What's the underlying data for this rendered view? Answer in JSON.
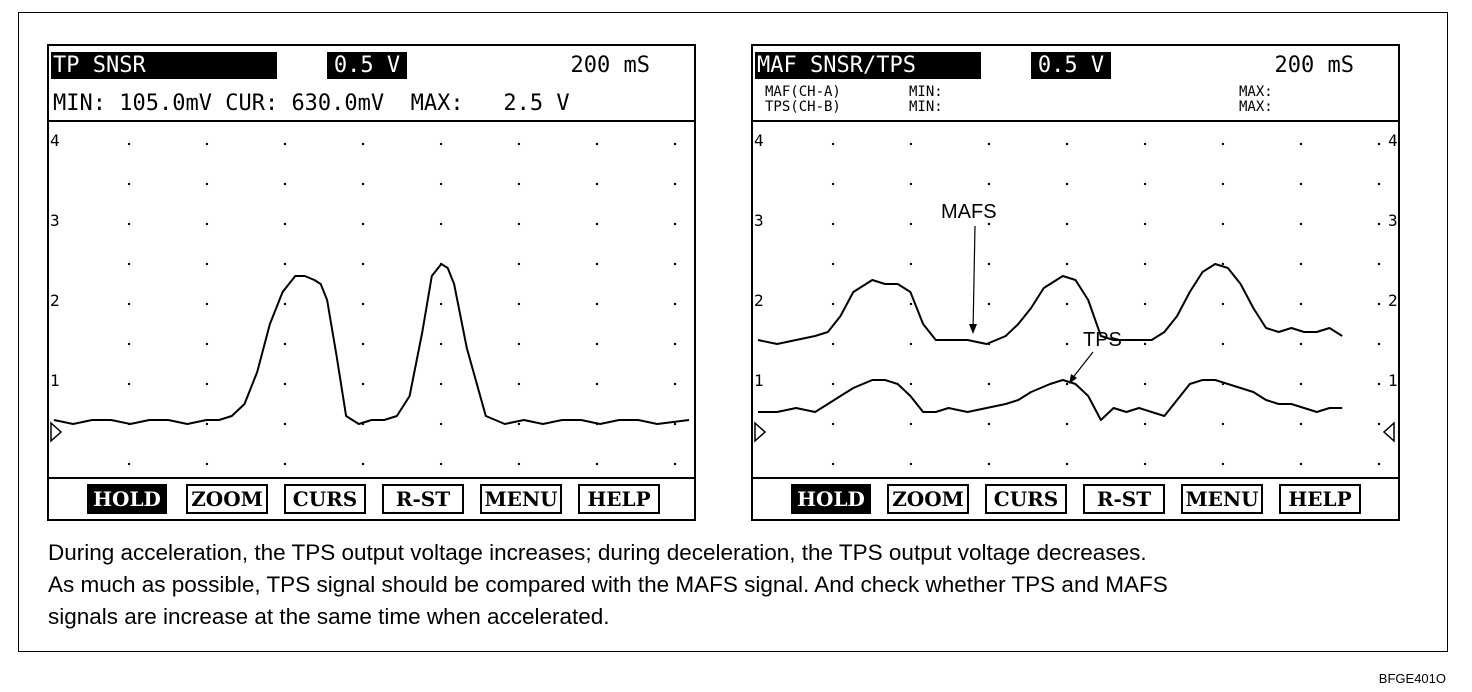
{
  "left": {
    "title": "TP SNSR",
    "volt_div": "0.5 V",
    "time_div": "200 mS",
    "min_label": "MIN:",
    "min_value": "105.0mV",
    "cur_label": "CUR:",
    "cur_value": "630.0mV",
    "max_label": "MAX:",
    "max_value": "2.5 V",
    "buttons": [
      "HOLD",
      "ZOOM",
      "CURS",
      "R-ST",
      "MENU",
      "HELP"
    ]
  },
  "right": {
    "title": "MAF SNSR/TPS",
    "volt_div": "0.5 V",
    "time_div": "200 mS",
    "ch_a": "MAF(CH-A)",
    "ch_b": "TPS(CH-B)",
    "min_label": "MIN:",
    "max_label": "MAX:",
    "buttons": [
      "HOLD",
      "ZOOM",
      "CURS",
      "R-ST",
      "MENU",
      "HELP"
    ]
  },
  "caption": {
    "line1": "During acceleration, the TPS output voltage increases; during deceleration, the TPS output voltage decreases.",
    "line2": "As much as possible, TPS signal should be compared with the MAFS signal. And check whether TPS and MAFS",
    "line3": "signals are increase at the same time when accelerated."
  },
  "figure_code": "BFGE401O",
  "chart_data": [
    {
      "type": "line",
      "ylim": [
        0,
        4
      ],
      "xlim": [
        0,
        10
      ],
      "y_ticks": [
        "1",
        "2",
        "3",
        "4"
      ],
      "grid": "dotted",
      "series": [
        {
          "x": [
            0,
            0.3,
            0.6,
            0.9,
            1.2,
            1.5,
            1.8,
            2.1,
            2.4,
            2.6,
            2.8,
            3.0,
            3.2,
            3.4,
            3.6,
            3.8,
            3.95,
            4.1,
            4.2,
            4.3,
            4.45,
            4.6,
            4.8,
            5.0,
            5.2,
            5.4,
            5.6,
            5.8,
            5.95,
            6.1,
            6.2,
            6.3,
            6.5,
            6.8,
            7.1,
            7.4,
            7.7,
            8.0,
            8.3,
            8.6,
            8.9,
            9.2,
            9.5,
            10
          ],
          "y": [
            0.5,
            0.45,
            0.5,
            0.5,
            0.45,
            0.5,
            0.5,
            0.45,
            0.5,
            0.5,
            0.55,
            0.7,
            1.1,
            1.7,
            2.1,
            2.3,
            2.3,
            2.25,
            2.2,
            2.0,
            1.3,
            0.55,
            0.45,
            0.5,
            0.5,
            0.55,
            0.8,
            1.6,
            2.3,
            2.45,
            2.4,
            2.2,
            1.4,
            0.55,
            0.45,
            0.5,
            0.45,
            0.5,
            0.5,
            0.45,
            0.5,
            0.5,
            0.45,
            0.5
          ]
        }
      ]
    },
    {
      "type": "line",
      "ylim": [
        0,
        4
      ],
      "xlim": [
        0,
        10
      ],
      "y_ticks": [
        "1",
        "2",
        "3",
        "4"
      ],
      "grid": "dotted",
      "series": [
        {
          "name": "MAFS",
          "x": [
            0,
            0.3,
            0.6,
            0.9,
            1.1,
            1.3,
            1.5,
            1.8,
            2.0,
            2.2,
            2.4,
            2.6,
            2.8,
            3.0,
            3.3,
            3.6,
            3.9,
            4.1,
            4.3,
            4.5,
            4.8,
            5.0,
            5.2,
            5.4,
            5.6,
            5.8,
            6.0,
            6.2,
            6.4,
            6.6,
            6.8,
            7.0,
            7.2,
            7.4,
            7.6,
            7.8,
            8.0,
            8.2,
            8.4,
            8.6,
            8.8,
            9.0,
            9.2
          ],
          "y": [
            1.5,
            1.45,
            1.5,
            1.55,
            1.6,
            1.8,
            2.1,
            2.25,
            2.2,
            2.2,
            2.1,
            1.7,
            1.5,
            1.5,
            1.5,
            1.45,
            1.55,
            1.7,
            1.9,
            2.15,
            2.3,
            2.25,
            2.0,
            1.55,
            1.5,
            1.5,
            1.5,
            1.5,
            1.6,
            1.8,
            2.1,
            2.35,
            2.45,
            2.4,
            2.2,
            1.9,
            1.65,
            1.6,
            1.65,
            1.6,
            1.6,
            1.65,
            1.55
          ]
        },
        {
          "name": "TPS",
          "x": [
            0,
            0.3,
            0.6,
            0.9,
            1.1,
            1.3,
            1.5,
            1.8,
            2.0,
            2.2,
            2.4,
            2.6,
            2.8,
            3.0,
            3.3,
            3.6,
            3.9,
            4.1,
            4.3,
            4.6,
            4.8,
            5.0,
            5.2,
            5.4,
            5.6,
            5.8,
            6.0,
            6.2,
            6.4,
            6.6,
            6.8,
            7.0,
            7.2,
            7.4,
            7.6,
            7.8,
            8.0,
            8.2,
            8.4,
            8.6,
            8.8,
            9.0,
            9.2
          ],
          "y": [
            0.6,
            0.6,
            0.65,
            0.6,
            0.7,
            0.8,
            0.9,
            1.0,
            1.0,
            0.95,
            0.8,
            0.6,
            0.6,
            0.65,
            0.6,
            0.65,
            0.7,
            0.75,
            0.85,
            0.95,
            1.0,
            0.95,
            0.8,
            0.5,
            0.65,
            0.6,
            0.65,
            0.6,
            0.55,
            0.75,
            0.95,
            1.0,
            1.0,
            0.95,
            0.9,
            0.85,
            0.75,
            0.7,
            0.7,
            0.65,
            0.6,
            0.65,
            0.65
          ]
        }
      ],
      "annotations": [
        "MAFS",
        "TPS"
      ]
    }
  ]
}
